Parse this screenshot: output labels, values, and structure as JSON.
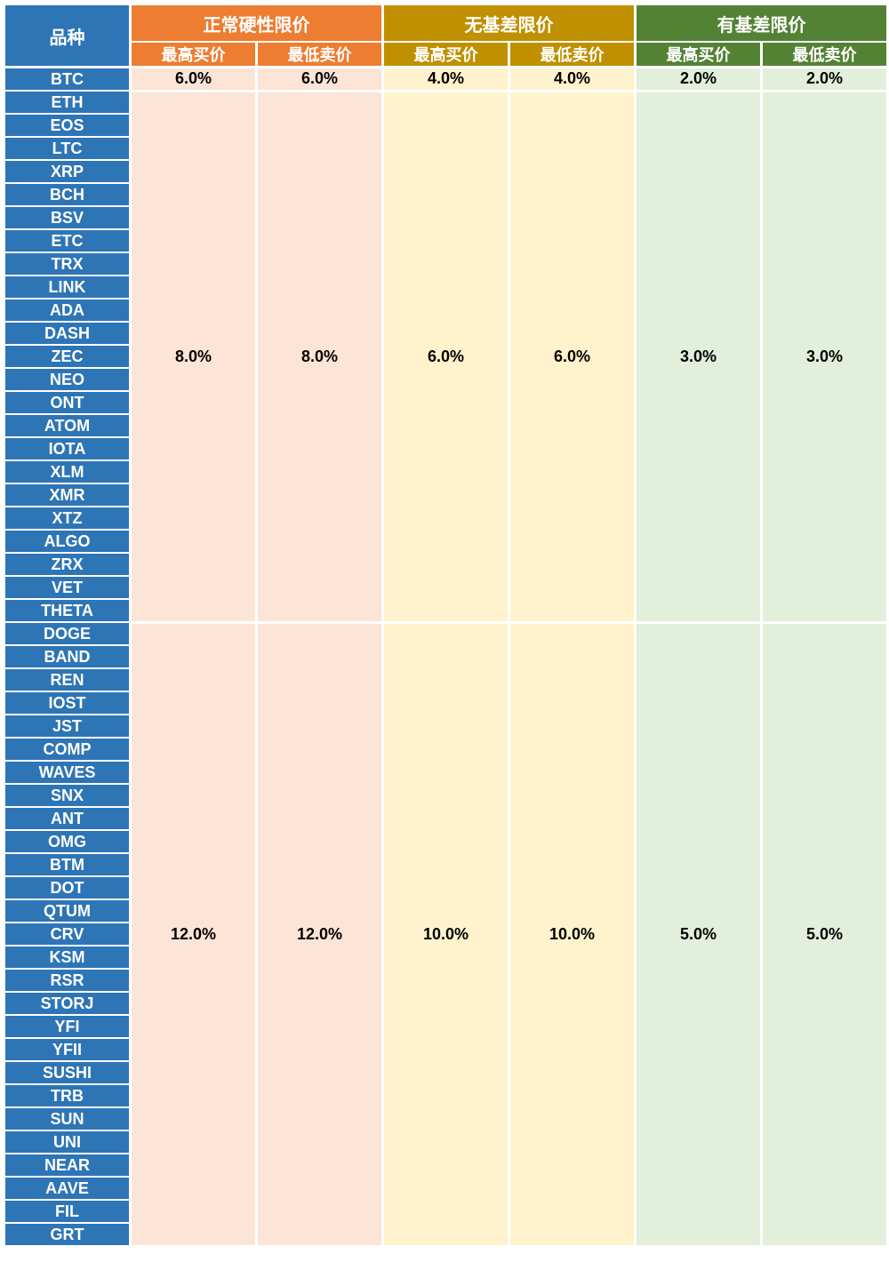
{
  "table": {
    "corner_header": "品种",
    "sub_headers": [
      "最高买价",
      "最低卖价"
    ],
    "groups": [
      {
        "label": "正常硬性限价",
        "header_bg": "#ED7D31",
        "body_bg": "#FCE4D6"
      },
      {
        "label": "无基差限价",
        "header_bg": "#BF9000",
        "body_bg": "#FFF2CC"
      },
      {
        "label": "有基差限价",
        "header_bg": "#548235",
        "body_bg": "#E2EFDA"
      }
    ],
    "tiers": [
      {
        "coins": [
          "BTC"
        ],
        "values": [
          "6.0%",
          "6.0%",
          "4.0%",
          "4.0%",
          "2.0%",
          "2.0%"
        ]
      },
      {
        "coins": [
          "ETH",
          "EOS",
          "LTC",
          "XRP",
          "BCH",
          "BSV",
          "ETC",
          "TRX",
          "LINK",
          "ADA",
          "DASH",
          "ZEC",
          "NEO",
          "ONT",
          "ATOM",
          "IOTA",
          "XLM",
          "XMR",
          "XTZ",
          "ALGO",
          "ZRX",
          "VET",
          "THETA"
        ],
        "values": [
          "8.0%",
          "8.0%",
          "6.0%",
          "6.0%",
          "3.0%",
          "3.0%"
        ]
      },
      {
        "coins": [
          "DOGE",
          "BAND",
          "REN",
          "IOST",
          "JST",
          "COMP",
          "WAVES",
          "SNX",
          "ANT",
          "OMG",
          "BTM",
          "DOT",
          "QTUM",
          "CRV",
          "KSM",
          "RSR",
          "STORJ",
          "YFI",
          "YFII",
          "SUSHI",
          "TRB",
          "SUN",
          "UNI",
          "NEAR",
          "AAVE",
          "FIL",
          "GRT"
        ],
        "values": [
          "12.0%",
          "12.0%",
          "10.0%",
          "10.0%",
          "5.0%",
          "5.0%"
        ]
      }
    ]
  },
  "colors": {
    "coin_column_bg": "#2E75B6",
    "coin_text": "#FFFFFF",
    "header_text": "#FFFFFF",
    "value_text": "#000000",
    "grid": "#FFFFFF"
  }
}
